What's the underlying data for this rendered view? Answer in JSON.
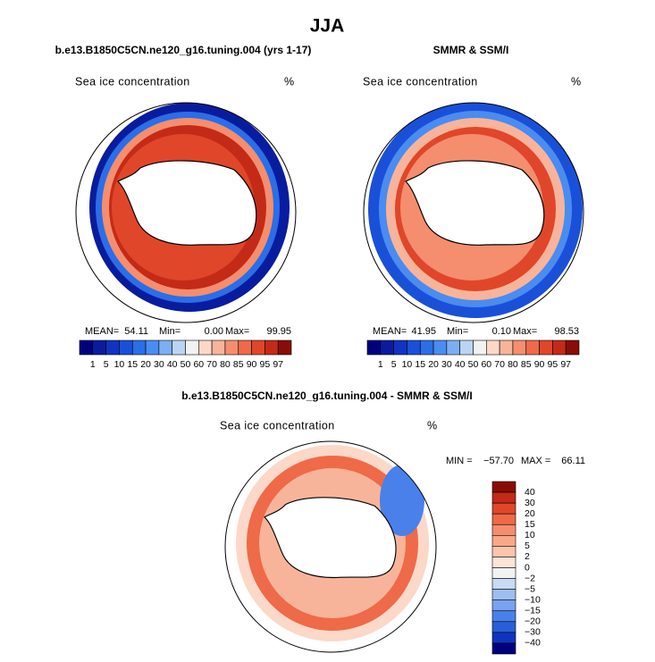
{
  "title": "JJA",
  "panels": [
    {
      "title": "b.e13.B1850C5CN.ne120_g16.tuning.004 (yrs 1-17)",
      "variable": "Sea ice concentration",
      "units": "%",
      "stats": [
        {
          "name": "MEAN=",
          "value": 54.11
        },
        {
          "name": "Min=",
          "value": 0,
          "value_label": "0.00"
        },
        {
          "name": "Max=",
          "value": 99.95
        }
      ]
    },
    {
      "title": "SMMR & SSM/I",
      "variable": "Sea ice concentration",
      "units": "%",
      "stats": [
        {
          "name": "MEAN=",
          "value": 41.95
        },
        {
          "name": "Min=",
          "value": 0.1,
          "value_label": "0.10"
        },
        {
          "name": "Max=",
          "value": 98.53
        }
      ]
    }
  ],
  "colorbar": {
    "levels": [
      1,
      5,
      10,
      15,
      20,
      30,
      40,
      50,
      60,
      70,
      80,
      85,
      90,
      95,
      97
    ],
    "colors": [
      "#00007f",
      "#0a1c9e",
      "#1034c0",
      "#1a50d8",
      "#2a6ee8",
      "#4a8cf0",
      "#7eaef2",
      "#bcd4f4",
      "#f2f2f2",
      "#fbd8c8",
      "#f8b49a",
      "#f48e6e",
      "#ee6a48",
      "#e0462a",
      "#c42a18",
      "#8a0c06"
    ]
  },
  "difference": {
    "title": "b.e13.B1850C5CN.ne120_g16.tuning.004 - SMMR & SSM/I",
    "variable": "Sea ice concentration",
    "units": "%",
    "stats": [
      {
        "name": "MIN =",
        "value": -57.7,
        "value_label": "−57.70"
      },
      {
        "name": "MAX =",
        "value": 66.11
      }
    ],
    "colorbar": {
      "levels": [
        40,
        30,
        20,
        15,
        10,
        5,
        2,
        0,
        {
          "value": -2,
          "label": "−2"
        },
        {
          "value": -5,
          "label": "−5"
        },
        {
          "value": -10,
          "label": "−10"
        },
        {
          "value": -15,
          "label": "−15"
        },
        {
          "value": -20,
          "label": "−20"
        },
        {
          "value": -30,
          "label": "−30"
        },
        {
          "value": -40,
          "label": "−40"
        }
      ],
      "colors": [
        "#8a0c06",
        "#c42a18",
        "#e0462a",
        "#ee6a48",
        "#f48e6e",
        "#f8a888",
        "#fbc4ac",
        "#fde4d8",
        "#f2f2f2",
        "#c8daf4",
        "#9ebef0",
        "#7aa2ee",
        "#4a80ea",
        "#2a5ed8",
        "#1034c0",
        "#00007f"
      ]
    }
  }
}
